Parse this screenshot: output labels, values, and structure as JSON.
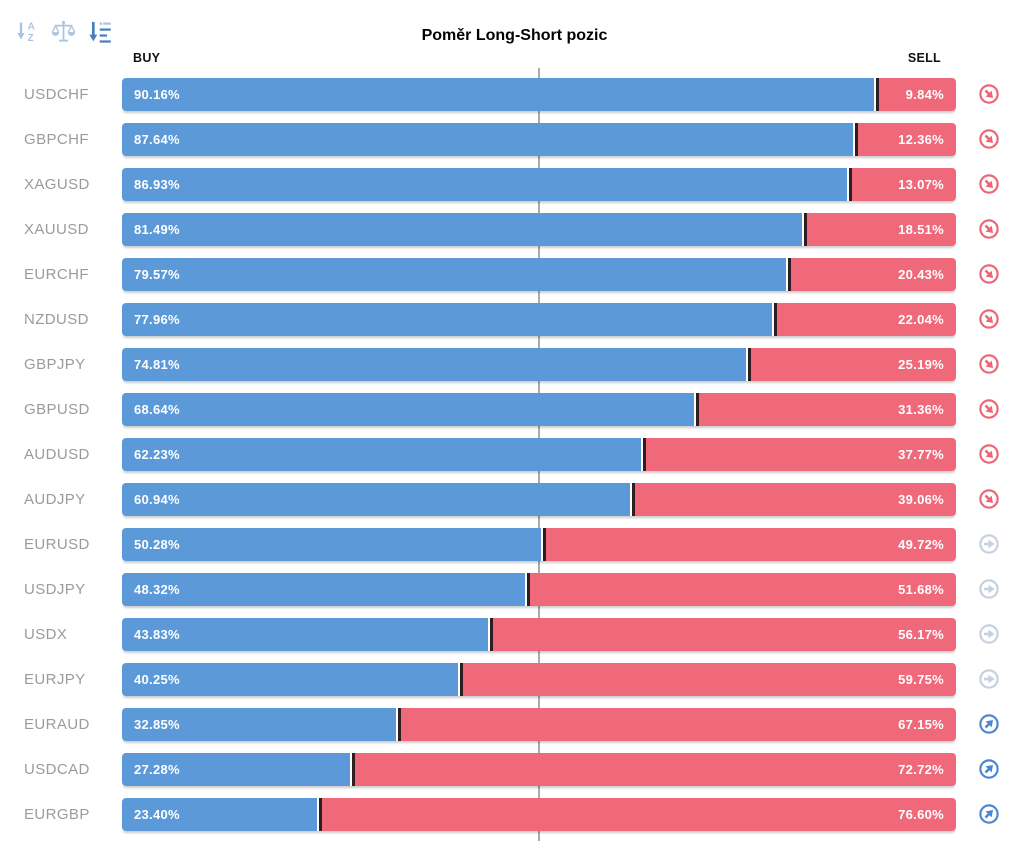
{
  "title": "Poměr Long-Short pozic",
  "columns": {
    "buy": "BUY",
    "sell": "SELL"
  },
  "toolbar": {
    "icons": [
      {
        "name": "sort-alphabetical-icon",
        "active": false
      },
      {
        "name": "balance-scale-icon",
        "active": false
      },
      {
        "name": "sort-amount-icon",
        "active": true
      }
    ]
  },
  "colors": {
    "buy_bar": "#5b99d8",
    "sell_bar": "#f0697b",
    "divider": "#2e1d21",
    "center_line": "#ababab",
    "pair_label": "#9b9b9b",
    "toolbar_icon": "#a9c5e1",
    "toolbar_icon_active": "#4a80b8",
    "signal_down": "#ed6677",
    "signal_neutral": "#c6d1dd",
    "signal_up": "#4c87d3"
  },
  "chart_data": {
    "type": "bar",
    "orientation": "horizontal-stacked",
    "title": "Poměr Long-Short pozic",
    "legend": [
      "BUY",
      "SELL"
    ],
    "legend_position": "top",
    "xlim": [
      0,
      100
    ],
    "center_line_at": 50,
    "grid": false,
    "categories": [
      "USDCHF",
      "GBPCHF",
      "XAGUSD",
      "XAUUSD",
      "EURCHF",
      "NZDUSD",
      "GBPJPY",
      "GBPUSD",
      "AUDUSD",
      "AUDJPY",
      "EURUSD",
      "USDJPY",
      "USDX",
      "EURJPY",
      "EURAUD",
      "USDCAD",
      "EURGBP"
    ],
    "series": [
      {
        "name": "BUY",
        "values": [
          90.16,
          87.64,
          86.93,
          81.49,
          79.57,
          77.96,
          74.81,
          68.64,
          62.23,
          60.94,
          50.28,
          48.32,
          43.83,
          40.25,
          32.85,
          27.28,
          23.4
        ]
      },
      {
        "name": "SELL",
        "values": [
          9.84,
          12.36,
          13.07,
          18.51,
          20.43,
          22.04,
          25.19,
          31.36,
          37.77,
          39.06,
          49.72,
          51.68,
          56.17,
          59.75,
          67.15,
          72.72,
          76.6
        ]
      }
    ],
    "buy_labels": [
      "90.16%",
      "87.64%",
      "86.93%",
      "81.49%",
      "79.57%",
      "77.96%",
      "74.81%",
      "68.64%",
      "62.23%",
      "60.94%",
      "50.28%",
      "48.32%",
      "43.83%",
      "40.25%",
      "32.85%",
      "27.28%",
      "23.40%"
    ],
    "sell_labels": [
      "9.84%",
      "12.36%",
      "13.07%",
      "18.51%",
      "20.43%",
      "22.04%",
      "25.19%",
      "31.36%",
      "37.77%",
      "39.06%",
      "49.72%",
      "51.68%",
      "56.17%",
      "59.75%",
      "67.15%",
      "72.72%",
      "76.60%"
    ],
    "signals": [
      "down",
      "down",
      "down",
      "down",
      "down",
      "down",
      "down",
      "down",
      "down",
      "down",
      "neutral",
      "neutral",
      "neutral",
      "neutral",
      "up",
      "up",
      "up"
    ]
  }
}
